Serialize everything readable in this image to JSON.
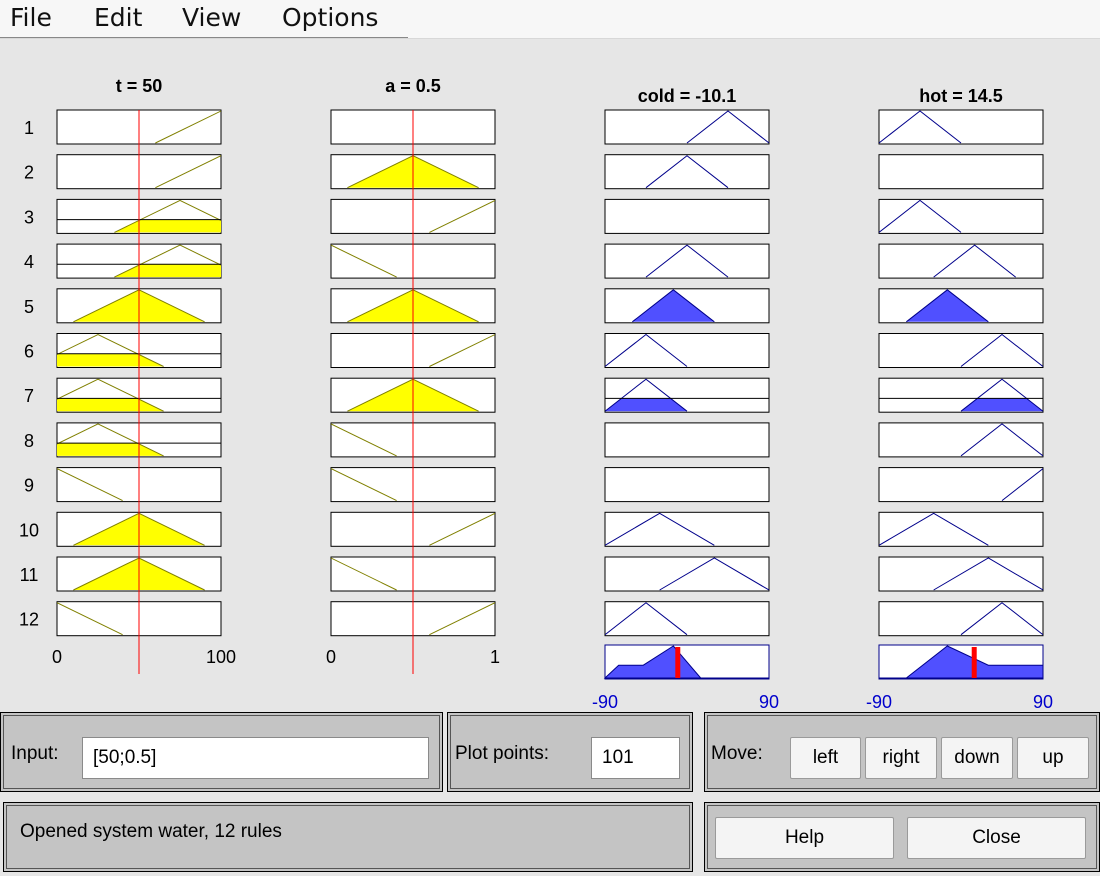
{
  "menu": [
    "File",
    "Edit",
    "View",
    "Options"
  ],
  "colors": {
    "input_fill": "#ffff00",
    "input_stroke": "#808000",
    "output_fill": "#5050ff",
    "output_stroke": "#00008b",
    "index_line": "#ff0000",
    "range_label": "#0000cc",
    "background": "#e6e6e6",
    "panel": "#c4c4c4"
  },
  "variables": [
    {
      "kind": "input",
      "header": "t = 50",
      "range": [
        0,
        100
      ],
      "range_labels": [
        "0",
        "100"
      ],
      "value": 50
    },
    {
      "kind": "input",
      "header": "a = 0.5",
      "range": [
        0,
        1
      ],
      "range_labels": [
        "0",
        "1"
      ],
      "value": 0.5
    },
    {
      "kind": "output",
      "header": "cold = -10.1",
      "range": [
        -90,
        90
      ],
      "range_labels": [
        "-90",
        "90"
      ],
      "value": -10.1
    },
    {
      "kind": "output",
      "header": "hot = 14.5",
      "range": [
        -90,
        90
      ],
      "range_labels": [
        "-90",
        "90"
      ],
      "value": 14.5
    }
  ],
  "rules": [
    {
      "label": "1",
      "mfs": [
        {
          "s": [
            60,
            100,
            140
          ],
          "d": 0
        },
        {
          "s": [
            60,
            100,
            140
          ],
          "d": 0
        },
        {
          "s": [
            0,
            45,
            90
          ],
          "d": 0
        },
        {
          "s": [
            -90,
            -45,
            0
          ],
          "d": 0
        }
      ]
    },
    {
      "label": "2",
      "mfs": [
        {
          "s": [
            60,
            100,
            140
          ],
          "d": 0
        },
        {
          "s": [
            0.1,
            0.5,
            0.9
          ],
          "d": 1
        },
        {
          "s": [
            -45,
            0,
            45
          ],
          "d": 0
        },
        null
      ]
    },
    {
      "label": "3",
      "mfs": [
        {
          "s": [
            35,
            75,
            115
          ],
          "d": 0.4
        },
        {
          "s": [
            0.6,
            1,
            1.4
          ],
          "d": 0
        },
        null,
        {
          "s": [
            -90,
            -45,
            0
          ],
          "d": 0
        }
      ]
    },
    {
      "label": "4",
      "mfs": [
        {
          "s": [
            35,
            75,
            115
          ],
          "d": 0.4
        },
        {
          "s": [
            -0.4,
            0,
            0.4
          ],
          "d": 0
        },
        {
          "s": [
            -45,
            0,
            45
          ],
          "d": 0
        },
        {
          "s": [
            -30,
            15,
            60
          ],
          "d": 0
        }
      ]
    },
    {
      "label": "5",
      "mfs": [
        {
          "s": [
            10,
            50,
            90
          ],
          "d": 1
        },
        {
          "s": [
            0.1,
            0.5,
            0.9
          ],
          "d": 1
        },
        {
          "s": [
            -60,
            -15,
            30
          ],
          "d": 1
        },
        {
          "s": [
            -60,
            -15,
            30
          ],
          "d": 1
        }
      ]
    },
    {
      "label": "6",
      "mfs": [
        {
          "s": [
            -15,
            25,
            65
          ],
          "d": 0.4
        },
        {
          "s": [
            0.6,
            1,
            1.4
          ],
          "d": 0
        },
        {
          "s": [
            -90,
            -45,
            0
          ],
          "d": 0
        },
        {
          "s": [
            0,
            45,
            90
          ],
          "d": 0
        }
      ]
    },
    {
      "label": "7",
      "mfs": [
        {
          "s": [
            -15,
            25,
            65
          ],
          "d": 0.4
        },
        {
          "s": [
            0.1,
            0.5,
            0.9
          ],
          "d": 1
        },
        {
          "s": [
            -90,
            -45,
            0
          ],
          "d": 0.4
        },
        {
          "s": [
            0,
            45,
            90
          ],
          "d": 0.4
        }
      ]
    },
    {
      "label": "8",
      "mfs": [
        {
          "s": [
            -15,
            25,
            65
          ],
          "d": 0.4
        },
        {
          "s": [
            -0.4,
            0,
            0.4
          ],
          "d": 0
        },
        null,
        {
          "s": [
            0,
            45,
            90
          ],
          "d": 0
        }
      ]
    },
    {
      "label": "9",
      "mfs": [
        {
          "s": [
            -40,
            0,
            40
          ],
          "d": 0
        },
        {
          "s": [
            -0.4,
            0,
            0.4
          ],
          "d": 0
        },
        null,
        {
          "s": [
            45,
            90,
            135
          ],
          "d": 0
        }
      ]
    },
    {
      "label": "10",
      "mfs": [
        {
          "s": [
            10,
            50,
            90
          ],
          "d": 1
        },
        {
          "s": [
            0.6,
            1,
            1.4
          ],
          "d": 0
        },
        {
          "s": [
            -90,
            -30,
            30
          ],
          "d": 0
        },
        {
          "s": [
            -90,
            -30,
            30
          ],
          "d": 0
        }
      ]
    },
    {
      "label": "11",
      "mfs": [
        {
          "s": [
            10,
            50,
            90
          ],
          "d": 1
        },
        {
          "s": [
            -0.4,
            0,
            0.4
          ],
          "d": 0
        },
        {
          "s": [
            -30,
            30,
            90
          ],
          "d": 0
        },
        {
          "s": [
            -30,
            30,
            90
          ],
          "d": 0
        }
      ]
    },
    {
      "label": "12",
      "mfs": [
        {
          "s": [
            -40,
            0,
            40
          ],
          "d": 0
        },
        {
          "s": [
            0.6,
            1,
            1.4
          ],
          "d": 0
        },
        {
          "s": [
            -90,
            -45,
            0
          ],
          "d": 0
        },
        {
          "s": [
            0,
            45,
            90
          ],
          "d": 0
        }
      ]
    }
  ],
  "aggregate": [
    {
      "pts": [
        [
          -90,
          0
        ],
        [
          -75,
          0.4
        ],
        [
          -48,
          0.4
        ],
        [
          -15,
          1
        ],
        [
          15,
          0
        ],
        [
          90,
          0
        ]
      ],
      "result": -10.1
    },
    {
      "pts": [
        [
          -90,
          0
        ],
        [
          -60,
          0
        ],
        [
          -15,
          1
        ],
        [
          30,
          0.4
        ],
        [
          90,
          0.4
        ],
        [
          90,
          0
        ]
      ],
      "result": 14.5
    }
  ],
  "input": {
    "label": "Input:",
    "value": "[50;0.5]"
  },
  "plot_points": {
    "label": "Plot points:",
    "value": "101"
  },
  "move": {
    "label": "Move:",
    "left": "left",
    "right": "right",
    "down": "down",
    "up": "up"
  },
  "status": "Opened system water, 12 rules",
  "help_label": "Help",
  "close_label": "Close"
}
